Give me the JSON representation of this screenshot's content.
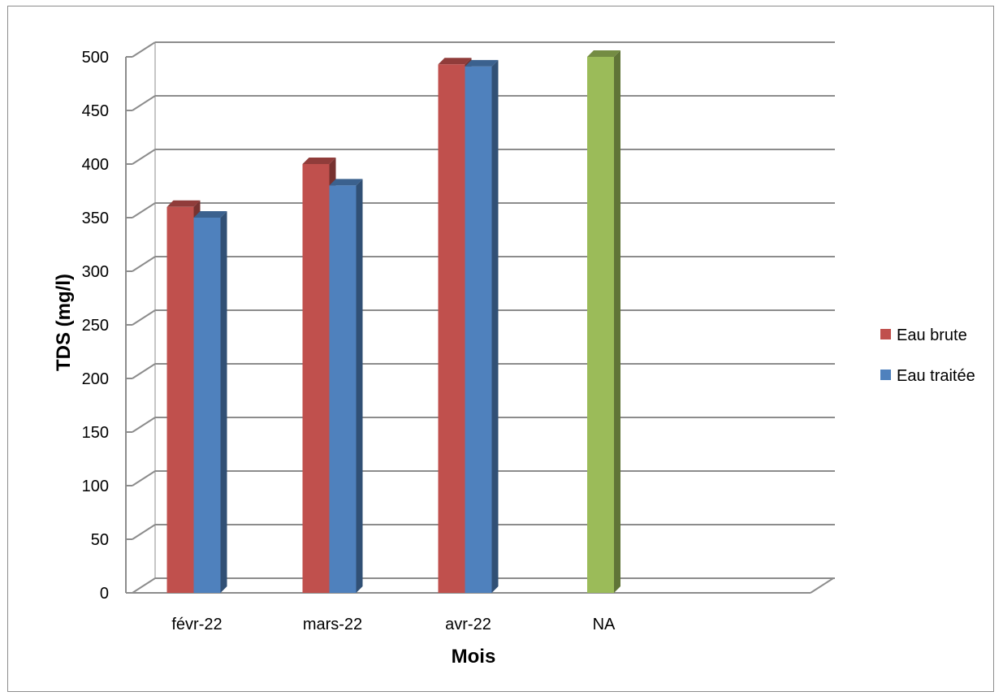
{
  "chart_data": {
    "type": "bar",
    "categories": [
      "févr-22",
      "mars-22",
      "avr-22",
      "NA"
    ],
    "series": [
      {
        "name": "Eau brute",
        "color": "#c0504d",
        "values": [
          360,
          400,
          493,
          null
        ]
      },
      {
        "name": "Eau traitée",
        "color": "#4f81bd",
        "values": [
          350,
          380,
          491,
          null
        ]
      },
      {
        "name": "",
        "color": "#9bbb59",
        "values": [
          null,
          null,
          null,
          500
        ]
      }
    ],
    "title": "",
    "xlabel": "Mois",
    "ylabel": "TDS (mg/l)",
    "ylim": [
      0,
      500
    ],
    "yticks": [
      "0",
      "50",
      "100",
      "150",
      "200",
      "250",
      "300",
      "350",
      "400",
      "450",
      "500"
    ],
    "grid": true,
    "legend_position": "right",
    "legend": [
      "Eau brute",
      "Eau traitée"
    ]
  }
}
